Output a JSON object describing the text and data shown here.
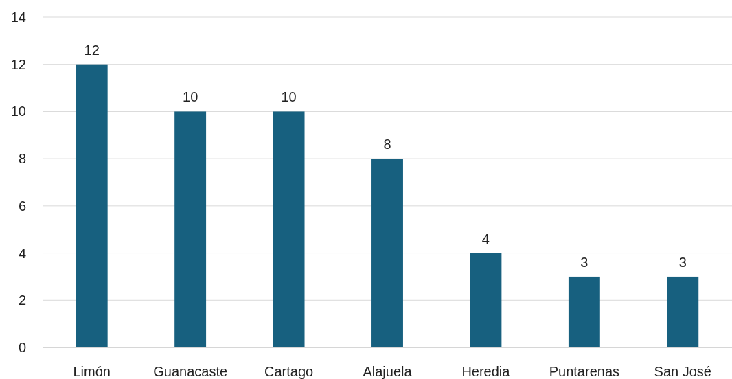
{
  "chart_data": {
    "type": "bar",
    "categories": [
      "Limón",
      "Guanacaste",
      "Cartago",
      "Alajuela",
      "Heredia",
      "Puntarenas",
      "San José"
    ],
    "values": [
      12,
      10,
      10,
      8,
      4,
      3,
      3
    ],
    "color": "#17607f",
    "ylim": [
      0,
      14
    ],
    "yticks": [
      0,
      2,
      4,
      6,
      8,
      10,
      12,
      14
    ],
    "grid": "y",
    "data_labels": true
  }
}
